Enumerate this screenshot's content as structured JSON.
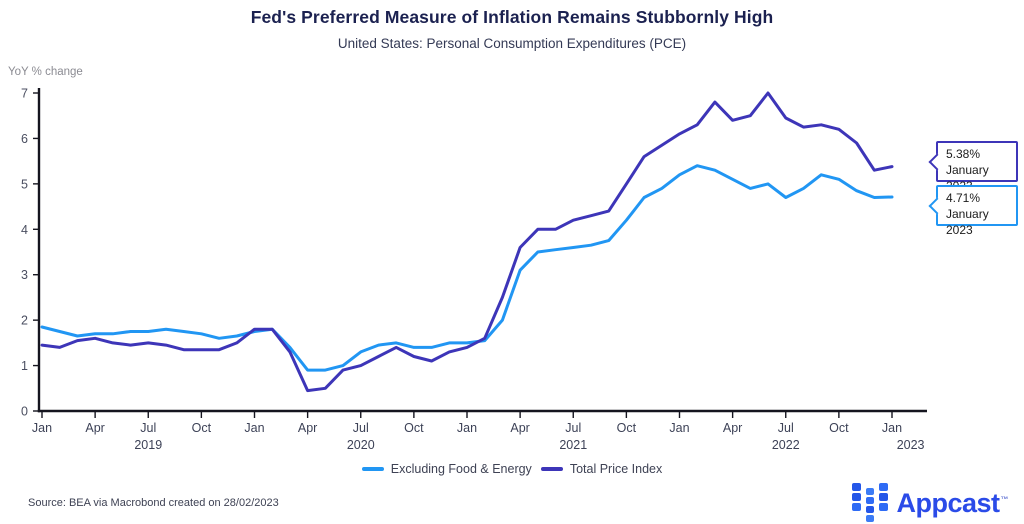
{
  "header": {
    "title": "Fed's Preferred Measure of Inflation Remains Stubbornly High",
    "subtitle": "United States: Personal Consumption Expenditures (PCE)"
  },
  "chart_data": {
    "type": "line",
    "ylabel": "YoY % change",
    "ylim": [
      0,
      7
    ],
    "y_ticks": [
      0,
      1,
      2,
      3,
      4,
      5,
      6,
      7
    ],
    "x_range": "Jan 2019 - Jan 2023, monthly",
    "x_tick_labels": [
      "Jan",
      "Apr",
      "Jul",
      "Oct",
      "Jan",
      "Apr",
      "Jul",
      "Oct",
      "Jan",
      "Apr",
      "Jul",
      "Oct",
      "Jan",
      "Apr",
      "Jul",
      "Oct",
      "Jan"
    ],
    "year_labels": [
      {
        "text": "2019",
        "quarter_index": 2
      },
      {
        "text": "2020",
        "quarter_index": 6
      },
      {
        "text": "2021",
        "quarter_index": 10
      },
      {
        "text": "2022",
        "quarter_index": 14
      },
      {
        "text": "2023",
        "quarter_index": 16.35
      }
    ],
    "legend_position": "bottom-center",
    "grid": false,
    "series": [
      {
        "name": "Excluding Food & Energy",
        "color": "#2196f3",
        "values": [
          1.85,
          1.75,
          1.65,
          1.7,
          1.7,
          1.75,
          1.75,
          1.8,
          1.75,
          1.7,
          1.6,
          1.65,
          1.75,
          1.8,
          1.4,
          0.9,
          0.9,
          1.0,
          1.3,
          1.45,
          1.5,
          1.4,
          1.4,
          1.5,
          1.5,
          1.55,
          2.0,
          3.1,
          3.5,
          3.55,
          3.6,
          3.65,
          3.75,
          4.2,
          4.7,
          4.9,
          5.2,
          5.4,
          5.3,
          5.1,
          4.9,
          5.0,
          4.7,
          4.9,
          5.2,
          5.1,
          4.85,
          4.7,
          4.71
        ]
      },
      {
        "name": "Total Price Index",
        "color": "#3d35b8",
        "values": [
          1.45,
          1.4,
          1.55,
          1.6,
          1.5,
          1.45,
          1.5,
          1.45,
          1.35,
          1.35,
          1.35,
          1.5,
          1.8,
          1.8,
          1.3,
          0.45,
          0.5,
          0.9,
          1.0,
          1.2,
          1.4,
          1.2,
          1.1,
          1.3,
          1.4,
          1.6,
          2.5,
          3.6,
          4.0,
          4.0,
          4.2,
          4.3,
          4.4,
          5.0,
          5.6,
          5.85,
          6.1,
          6.3,
          6.8,
          6.4,
          6.5,
          7.0,
          6.45,
          6.25,
          6.3,
          6.2,
          5.9,
          5.3,
          5.38
        ]
      }
    ]
  },
  "callouts": [
    {
      "value": "5.38%",
      "date": "January 2023",
      "color": "#3d35b8"
    },
    {
      "value": "4.71%",
      "date": "January 2023",
      "color": "#2196f3"
    }
  ],
  "footer": {
    "source": "Source: BEA via Macrobond created on 28/02/2023",
    "brand": "Appcast",
    "brand_tm": "™"
  }
}
